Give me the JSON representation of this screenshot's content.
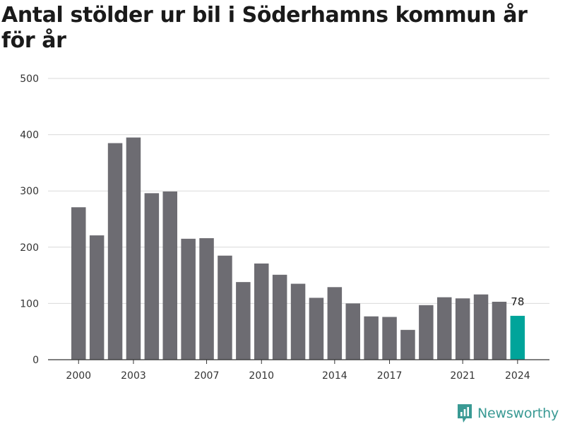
{
  "title": "Antal stölder ur bil i Söderhamns kommun år för år",
  "brand": {
    "name": "Newsworthy",
    "icon": "newsworthy-logo-icon",
    "color": "#3a9a94"
  },
  "colors": {
    "bar": "#6d6c72",
    "highlight": "#00a49a",
    "grid": "#d9d9d9",
    "axis": "#333333"
  },
  "chart_data": {
    "type": "bar",
    "title": "Antal stölder ur bil i Söderhamns kommun år för år",
    "xlabel": "",
    "ylabel": "",
    "categories": [
      2000,
      2001,
      2002,
      2003,
      2004,
      2005,
      2006,
      2007,
      2008,
      2009,
      2010,
      2011,
      2012,
      2013,
      2014,
      2015,
      2016,
      2017,
      2018,
      2019,
      2020,
      2021,
      2022,
      2023,
      2024
    ],
    "values": [
      271,
      221,
      385,
      395,
      296,
      299,
      215,
      216,
      185,
      138,
      171,
      151,
      135,
      110,
      129,
      100,
      77,
      76,
      53,
      97,
      111,
      109,
      116,
      103,
      78
    ],
    "ylim": [
      0,
      500
    ],
    "yticks": [
      0,
      100,
      200,
      300,
      400,
      500
    ],
    "xticks": [
      2000,
      2003,
      2007,
      2010,
      2014,
      2017,
      2021,
      2024
    ],
    "highlight_category": 2024,
    "highlight_label": "78",
    "grid": true,
    "legend": "none"
  }
}
